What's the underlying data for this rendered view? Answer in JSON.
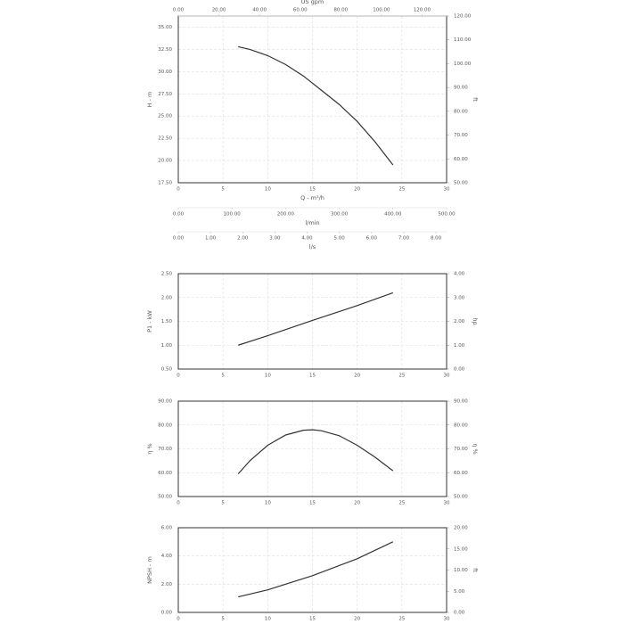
{
  "chart_data": [
    {
      "type": "line",
      "ylabel": "H - m",
      "y2label": "ft",
      "xlabel": "Q - m³/h",
      "color": "#333333",
      "grid": true,
      "xlim": [
        0,
        30
      ],
      "xticks": [
        0,
        5,
        10,
        15,
        20,
        25,
        30
      ],
      "ylim": [
        17.5,
        36.25
      ],
      "yticks": [
        {
          "value": 17.5,
          "label": "17.50"
        },
        {
          "value": 20,
          "label": "20.00"
        },
        {
          "value": 22.5,
          "label": "22.50"
        },
        {
          "value": 25,
          "label": "25.00"
        },
        {
          "value": 27.5,
          "label": "27.50"
        },
        {
          "value": 30,
          "label": "30.00"
        },
        {
          "value": 32.5,
          "label": "32.50"
        },
        {
          "value": 35,
          "label": "35.00"
        }
      ],
      "y2lim": [
        50,
        120
      ],
      "y2ticks": [
        {
          "value": 50,
          "label": "50.00"
        },
        {
          "value": 60,
          "label": "60.00"
        },
        {
          "value": 70,
          "label": "70.00"
        },
        {
          "value": 80,
          "label": "80.00"
        },
        {
          "value": 90,
          "label": "90.00"
        },
        {
          "value": 100,
          "label": "100.00"
        },
        {
          "value": 110,
          "label": "110.00"
        },
        {
          "value": 120,
          "label": "120.00"
        }
      ],
      "x": [
        6.7,
        8,
        10,
        12,
        14,
        16,
        18,
        20,
        22,
        24
      ],
      "values": [
        32.8,
        32.5,
        31.8,
        30.8,
        29.5,
        27.9,
        26.3,
        24.4,
        22.1,
        19.5
      ],
      "extra_axes": [
        {
          "position": "top",
          "label": "US gpm",
          "lim": [
            0,
            132.1
          ],
          "ticks": [
            {
              "value": 0,
              "label": "0.00"
            },
            {
              "value": 20,
              "label": "20.00"
            },
            {
              "value": 40,
              "label": "40.00"
            },
            {
              "value": 60,
              "label": "60.00"
            },
            {
              "value": 80,
              "label": "80.00"
            },
            {
              "value": 100,
              "label": "100.00"
            },
            {
              "value": 120,
              "label": "120.00"
            }
          ]
        },
        {
          "position": "bottom",
          "label": "l/min",
          "lim": [
            0,
            500
          ],
          "ticks": [
            {
              "value": 0,
              "label": "0.00"
            },
            {
              "value": 100,
              "label": "100.00"
            },
            {
              "value": 200,
              "label": "200.00"
            },
            {
              "value": 300,
              "label": "300.00"
            },
            {
              "value": 400,
              "label": "400.00"
            },
            {
              "value": 500,
              "label": "500.00"
            }
          ]
        },
        {
          "position": "bottom",
          "label": "l/s",
          "lim": [
            0,
            8.33
          ],
          "ticks": [
            {
              "value": 0,
              "label": "0.00"
            },
            {
              "value": 1,
              "label": "1.00"
            },
            {
              "value": 2,
              "label": "2.00"
            },
            {
              "value": 3,
              "label": "3.00"
            },
            {
              "value": 4,
              "label": "4.00"
            },
            {
              "value": 5,
              "label": "5.00"
            },
            {
              "value": 6,
              "label": "6.00"
            },
            {
              "value": 7,
              "label": "7.00"
            },
            {
              "value": 8,
              "label": "8.00"
            }
          ]
        }
      ]
    },
    {
      "type": "line",
      "ylabel": "P1 - kW",
      "y2label": "hp",
      "color": "#333333",
      "grid": true,
      "xlim": [
        0,
        30
      ],
      "xticks": [
        0,
        5,
        10,
        15,
        20,
        25,
        30
      ],
      "ylim": [
        0.5,
        2.5
      ],
      "yticks": [
        {
          "value": 0.5,
          "label": "0.50"
        },
        {
          "value": 1,
          "label": "1.00"
        },
        {
          "value": 1.5,
          "label": "1.50"
        },
        {
          "value": 2,
          "label": "2.00"
        },
        {
          "value": 2.5,
          "label": "2.50"
        }
      ],
      "y2lim": [
        0,
        4
      ],
      "y2ticks": [
        {
          "value": 0,
          "label": "0.00"
        },
        {
          "value": 1,
          "label": "1.00"
        },
        {
          "value": 2,
          "label": "2.00"
        },
        {
          "value": 3,
          "label": "3.00"
        },
        {
          "value": 4,
          "label": "4.00"
        }
      ],
      "x": [
        6.7,
        10,
        15,
        20,
        24
      ],
      "values": [
        1.0,
        1.2,
        1.52,
        1.83,
        2.1
      ]
    },
    {
      "type": "line",
      "ylabel": "η %",
      "y2label": "η %",
      "color": "#333333",
      "grid": true,
      "xlim": [
        0,
        30
      ],
      "xticks": [
        0,
        5,
        10,
        15,
        20,
        25,
        30
      ],
      "ylim": [
        50,
        90
      ],
      "yticks": [
        {
          "value": 50,
          "label": "50.00"
        },
        {
          "value": 60,
          "label": "60.00"
        },
        {
          "value": 70,
          "label": "70.00"
        },
        {
          "value": 80,
          "label": "80.00"
        },
        {
          "value": 90,
          "label": "90.00"
        }
      ],
      "y2lim": [
        50,
        90
      ],
      "y2ticks": [
        {
          "value": 50,
          "label": "50.00"
        },
        {
          "value": 60,
          "label": "60.00"
        },
        {
          "value": 70,
          "label": "70.00"
        },
        {
          "value": 80,
          "label": "80.00"
        },
        {
          "value": 90,
          "label": "90.00"
        }
      ],
      "x": [
        6.7,
        8,
        10,
        12,
        14,
        15,
        16,
        18,
        20,
        22,
        24
      ],
      "values": [
        59.5,
        65,
        71.5,
        75.8,
        77.8,
        78,
        77.6,
        75.5,
        71.5,
        66.5,
        60.8
      ]
    },
    {
      "type": "line",
      "ylabel": "NPSH - m",
      "y2label": "ft",
      "color": "#333333",
      "grid": true,
      "xlim": [
        0,
        30
      ],
      "xticks": [
        0,
        5,
        10,
        15,
        20,
        25,
        30
      ],
      "ylim": [
        0,
        6
      ],
      "yticks": [
        {
          "value": 0,
          "label": "0.00"
        },
        {
          "value": 2,
          "label": "2.00"
        },
        {
          "value": 4,
          "label": "4.00"
        },
        {
          "value": 6,
          "label": "6.00"
        }
      ],
      "y2lim": [
        0,
        20
      ],
      "y2ticks": [
        {
          "value": 0,
          "label": "0.00"
        },
        {
          "value": 5,
          "label": "5.00"
        },
        {
          "value": 10,
          "label": "10.00"
        },
        {
          "value": 15,
          "label": "15.00"
        },
        {
          "value": 20,
          "label": "20.00"
        }
      ],
      "x": [
        6.7,
        10,
        15,
        20,
        24
      ],
      "values": [
        1.1,
        1.6,
        2.6,
        3.8,
        5.0
      ]
    }
  ]
}
